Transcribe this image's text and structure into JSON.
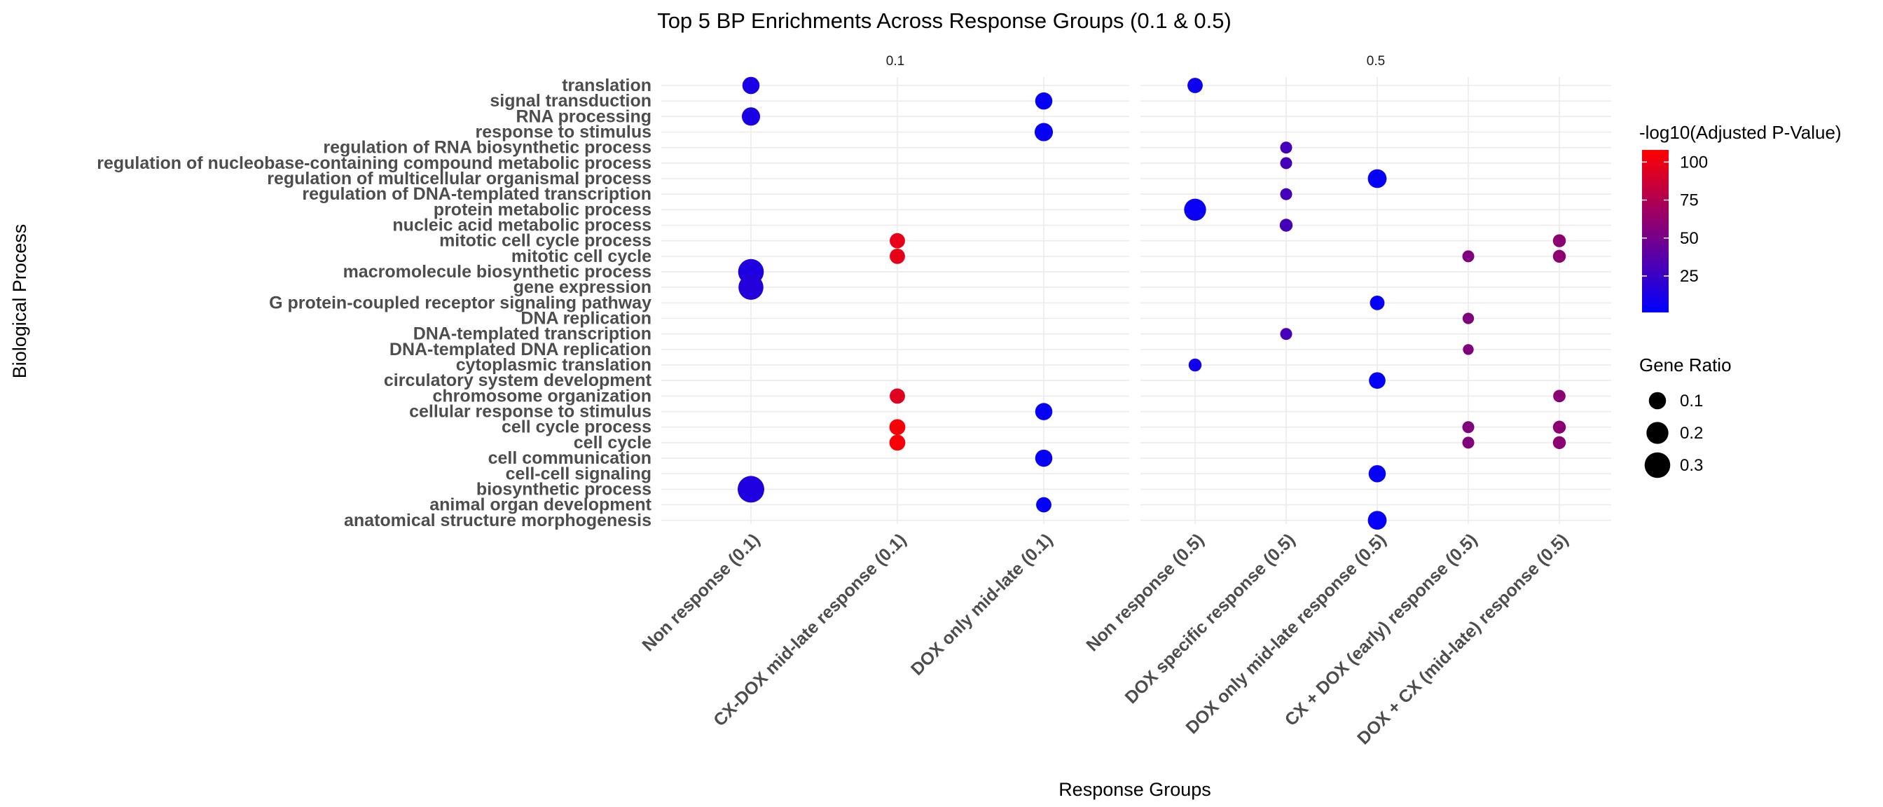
{
  "chart_data": {
    "type": "scatter",
    "title": "Top 5 BP Enrichments Across Response Groups (0.1 & 0.5)",
    "xlabel": "Response Groups",
    "ylabel": "Biological Process",
    "grid": true,
    "legend_position": "right",
    "facets": [
      {
        "label": "0.1",
        "categories": [
          "Non response (0.1)",
          "CX-DOX mid-late response (0.1)",
          "DOX only mid-late (0.1)"
        ]
      },
      {
        "label": "0.5",
        "categories": [
          "Non response (0.5)",
          "DOX specific response (0.5)",
          "DOX only mid-late response (0.5)",
          "CX + DOX (early) response (0.5)",
          "DOX + CX (mid-late) response (0.5)"
        ]
      }
    ],
    "y_categories": [
      "translation",
      "signal transduction",
      "RNA processing",
      "response to stimulus",
      "regulation of RNA biosynthetic process",
      "regulation of nucleobase-containing compound metabolic process",
      "regulation of multicellular organismal process",
      "regulation of DNA-templated transcription",
      "protein metabolic process",
      "nucleic acid metabolic process",
      "mitotic cell cycle process",
      "mitotic cell cycle",
      "macromolecule biosynthetic process",
      "gene expression",
      "G protein-coupled receptor signaling pathway",
      "DNA replication",
      "DNA-templated transcription",
      "DNA-templated DNA replication",
      "cytoplasmic translation",
      "circulatory system development",
      "chromosome organization",
      "cellular response to stimulus",
      "cell cycle process",
      "cell cycle",
      "cell communication",
      "cell-cell signaling",
      "biosynthetic process",
      "animal organ development",
      "anatomical structure morphogenesis"
    ],
    "points": [
      {
        "facet": 0,
        "x": "Non response (0.1)",
        "y": "translation",
        "gene_ratio": 0.1,
        "neg_log10_padj": 12
      },
      {
        "facet": 0,
        "x": "Non response (0.1)",
        "y": "RNA processing",
        "gene_ratio": 0.12,
        "neg_log10_padj": 12
      },
      {
        "facet": 0,
        "x": "Non response (0.1)",
        "y": "macromolecule biosynthetic process",
        "gene_ratio": 0.3,
        "neg_log10_padj": 14
      },
      {
        "facet": 0,
        "x": "Non response (0.1)",
        "y": "gene expression",
        "gene_ratio": 0.28,
        "neg_log10_padj": 16
      },
      {
        "facet": 0,
        "x": "Non response (0.1)",
        "y": "biosynthetic process",
        "gene_ratio": 0.33,
        "neg_log10_padj": 14
      },
      {
        "facet": 0,
        "x": "CX-DOX mid-late response (0.1)",
        "y": "mitotic cell cycle process",
        "gene_ratio": 0.07,
        "neg_log10_padj": 98
      },
      {
        "facet": 0,
        "x": "CX-DOX mid-late response (0.1)",
        "y": "mitotic cell cycle",
        "gene_ratio": 0.07,
        "neg_log10_padj": 98
      },
      {
        "facet": 0,
        "x": "CX-DOX mid-late response (0.1)",
        "y": "chromosome organization",
        "gene_ratio": 0.07,
        "neg_log10_padj": 95
      },
      {
        "facet": 0,
        "x": "CX-DOX mid-late response (0.1)",
        "y": "cell cycle process",
        "gene_ratio": 0.08,
        "neg_log10_padj": 105
      },
      {
        "facet": 0,
        "x": "CX-DOX mid-late response (0.1)",
        "y": "cell cycle",
        "gene_ratio": 0.08,
        "neg_log10_padj": 105
      },
      {
        "facet": 0,
        "x": "DOX only mid-late (0.1)",
        "y": "signal transduction",
        "gene_ratio": 0.1,
        "neg_log10_padj": 4
      },
      {
        "facet": 0,
        "x": "DOX only mid-late (0.1)",
        "y": "response to stimulus",
        "gene_ratio": 0.12,
        "neg_log10_padj": 4
      },
      {
        "facet": 0,
        "x": "DOX only mid-late (0.1)",
        "y": "cellular response to stimulus",
        "gene_ratio": 0.1,
        "neg_log10_padj": 4
      },
      {
        "facet": 0,
        "x": "DOX only mid-late (0.1)",
        "y": "cell communication",
        "gene_ratio": 0.1,
        "neg_log10_padj": 4
      },
      {
        "facet": 0,
        "x": "DOX only mid-late (0.1)",
        "y": "animal organ development",
        "gene_ratio": 0.07,
        "neg_log10_padj": 3
      },
      {
        "facet": 1,
        "x": "Non response (0.5)",
        "y": "translation",
        "gene_ratio": 0.07,
        "neg_log10_padj": 7
      },
      {
        "facet": 1,
        "x": "Non response (0.5)",
        "y": "protein metabolic process",
        "gene_ratio": 0.2,
        "neg_log10_padj": 5
      },
      {
        "facet": 1,
        "x": "Non response (0.5)",
        "y": "cytoplasmic translation",
        "gene_ratio": 0.04,
        "neg_log10_padj": 8
      },
      {
        "facet": 1,
        "x": "DOX specific response (0.5)",
        "y": "regulation of RNA biosynthetic process",
        "gene_ratio": 0.03,
        "neg_log10_padj": 30
      },
      {
        "facet": 1,
        "x": "DOX specific response (0.5)",
        "y": "regulation of nucleobase-containing compound metabolic process",
        "gene_ratio": 0.03,
        "neg_log10_padj": 30
      },
      {
        "facet": 1,
        "x": "DOX specific response (0.5)",
        "y": "regulation of DNA-templated transcription",
        "gene_ratio": 0.03,
        "neg_log10_padj": 30
      },
      {
        "facet": 1,
        "x": "DOX specific response (0.5)",
        "y": "nucleic acid metabolic process",
        "gene_ratio": 0.04,
        "neg_log10_padj": 30
      },
      {
        "facet": 1,
        "x": "DOX specific response (0.5)",
        "y": "DNA-templated transcription",
        "gene_ratio": 0.03,
        "neg_log10_padj": 30
      },
      {
        "facet": 1,
        "x": "DOX only mid-late response (0.5)",
        "y": "regulation of multicellular organismal process",
        "gene_ratio": 0.13,
        "neg_log10_padj": 3
      },
      {
        "facet": 1,
        "x": "DOX only mid-late response (0.5)",
        "y": "G protein-coupled receptor signaling pathway",
        "gene_ratio": 0.06,
        "neg_log10_padj": 3
      },
      {
        "facet": 1,
        "x": "DOX only mid-late response (0.5)",
        "y": "circulatory system development",
        "gene_ratio": 0.09,
        "neg_log10_padj": 3
      },
      {
        "facet": 1,
        "x": "DOX only mid-late response (0.5)",
        "y": "cell-cell signaling",
        "gene_ratio": 0.1,
        "neg_log10_padj": 3
      },
      {
        "facet": 1,
        "x": "DOX only mid-late response (0.5)",
        "y": "anatomical structure morphogenesis",
        "gene_ratio": 0.13,
        "neg_log10_padj": 3
      },
      {
        "facet": 1,
        "x": "CX + DOX (early) response (0.5)",
        "y": "mitotic cell cycle",
        "gene_ratio": 0.03,
        "neg_log10_padj": 55
      },
      {
        "facet": 1,
        "x": "CX + DOX (early) response (0.5)",
        "y": "DNA replication",
        "gene_ratio": 0.025,
        "neg_log10_padj": 55
      },
      {
        "facet": 1,
        "x": "CX + DOX (early) response (0.5)",
        "y": "DNA-templated DNA replication",
        "gene_ratio": 0.02,
        "neg_log10_padj": 55
      },
      {
        "facet": 1,
        "x": "CX + DOX (early) response (0.5)",
        "y": "cell cycle process",
        "gene_ratio": 0.03,
        "neg_log10_padj": 55
      },
      {
        "facet": 1,
        "x": "CX + DOX (early) response (0.5)",
        "y": "cell cycle",
        "gene_ratio": 0.03,
        "neg_log10_padj": 55
      },
      {
        "facet": 1,
        "x": "DOX + CX (mid-late) response (0.5)",
        "y": "mitotic cell cycle process",
        "gene_ratio": 0.04,
        "neg_log10_padj": 60
      },
      {
        "facet": 1,
        "x": "DOX + CX (mid-late) response (0.5)",
        "y": "mitotic cell cycle",
        "gene_ratio": 0.04,
        "neg_log10_padj": 60
      },
      {
        "facet": 1,
        "x": "DOX + CX (mid-late) response (0.5)",
        "y": "chromosome organization",
        "gene_ratio": 0.035,
        "neg_log10_padj": 60
      },
      {
        "facet": 1,
        "x": "DOX + CX (mid-late) response (0.5)",
        "y": "cell cycle process",
        "gene_ratio": 0.04,
        "neg_log10_padj": 60
      },
      {
        "facet": 1,
        "x": "DOX + CX (mid-late) response (0.5)",
        "y": "cell cycle",
        "gene_ratio": 0.04,
        "neg_log10_padj": 60
      }
    ],
    "color_legend": {
      "title": "-log10(Adjusted P-Value)",
      "breaks": [
        100,
        75,
        50,
        25
      ],
      "range": [
        1,
        108
      ],
      "low_color": "#0000ff",
      "high_color": "#ff0000"
    },
    "size_legend": {
      "title": "Gene Ratio",
      "breaks": [
        0.1,
        0.2,
        0.3
      ],
      "range": [
        0.01,
        0.33
      ]
    }
  }
}
